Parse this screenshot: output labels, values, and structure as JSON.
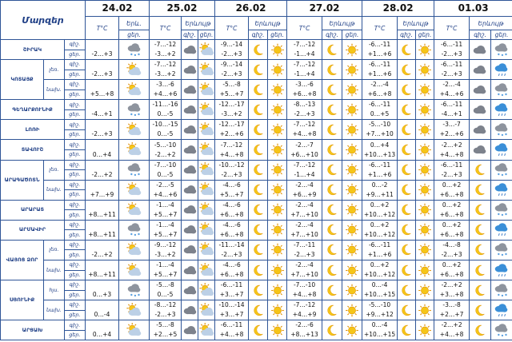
{
  "header": {
    "region": "Մարզեր",
    "dates": [
      "24.02",
      "25.02",
      "26.02",
      "27.02",
      "28.02",
      "01.03"
    ],
    "temp": "T°C",
    "phen": "Երևույթ",
    "phen_short": "Երև.",
    "night": "գիշ.",
    "day": "ցեր."
  },
  "regions": [
    {
      "name": "ՇԻՐԱԿ",
      "rows": [
        {
          "first": "-2…+3",
          "days": [
            [
              "-7…-12",
              "-3…+2"
            ],
            [
              "-9…-14",
              "-2…+3"
            ],
            [
              "-7…-12",
              "-1…+4"
            ],
            [
              "-6…-11",
              "+1…+6"
            ],
            [
              "-6…-11",
              "-2…+3"
            ]
          ]
        }
      ]
    },
    {
      "name": "ԿՈՏԱՅՔ",
      "rows": [
        {
          "sub": "լեռ.",
          "first": "-2…+3",
          "days": [
            [
              "-7…-12",
              "-3…+2"
            ],
            [
              "-9…-14",
              "-2…+3"
            ],
            [
              "-7…-12",
              "-1…+4"
            ],
            [
              "-6…-11",
              "+1…+6"
            ],
            [
              "-6…-11",
              "-2…+3"
            ]
          ]
        },
        {
          "sub": "նախ.",
          "first": "+5…+8",
          "days": [
            [
              "-3…-6",
              "+4…+6"
            ],
            [
              "-5…-8",
              "+5…+7"
            ],
            [
              "-3…-6",
              "+6…+8"
            ],
            [
              "-2…-4",
              "+6…+8"
            ],
            [
              "-2…-4",
              "+4…+6"
            ]
          ]
        }
      ]
    },
    {
      "name": "ԳԵՂԱՐՔՈՒՆԻՔ",
      "rows": [
        {
          "first": "-4…+1",
          "days": [
            [
              "-11…-16",
              "0…-5"
            ],
            [
              "-12…-17",
              "-3…+2"
            ],
            [
              "-8…-13",
              "-2…+3"
            ],
            [
              "-6…-11",
              "0…+5"
            ],
            [
              "-6…-11",
              "-4…+1"
            ]
          ]
        }
      ]
    },
    {
      "name": "ԼՈՌԻ",
      "rows": [
        {
          "first": "-2…+3",
          "days": [
            [
              "-10…-15",
              "0…-5"
            ],
            [
              "-12…-17",
              "+2…+6"
            ],
            [
              "-7…-12",
              "+4…+8"
            ],
            [
              "-5…-10",
              "+7…+10"
            ],
            [
              "-3…-7",
              "+2…+6"
            ]
          ]
        }
      ]
    },
    {
      "name": "ՏԱՎՈՒՇ",
      "rows": [
        {
          "first": "0…+4",
          "days": [
            [
              "-5…-10",
              "-2…+2"
            ],
            [
              "-7…-12",
              "+4…+8"
            ],
            [
              "-2…-7",
              "+6…+10"
            ],
            [
              "0…+4",
              "+10…+13"
            ],
            [
              "-2…+2",
              "+4…+8"
            ]
          ]
        }
      ]
    },
    {
      "name": "ԱՐԱԳԱԾՈՏՆ",
      "rows": [
        {
          "sub": "լեռ.",
          "first": "-2…+2",
          "days": [
            [
              "-7…-10",
              "0…-5"
            ],
            [
              "-10…-12",
              "-2…+3"
            ],
            [
              "-7…-12",
              "-1…+4"
            ],
            [
              "-6…-11",
              "+1…+6"
            ],
            [
              "-6…-11",
              "-2…+3"
            ]
          ]
        },
        {
          "sub": "նախ.",
          "first": "+7…+9",
          "days": [
            [
              "-2…-5",
              "+4…+6"
            ],
            [
              "-4…-6",
              "+5…+7"
            ],
            [
              "-2…-4",
              "+6…+9"
            ],
            [
              "0…-2",
              "+9…+11"
            ],
            [
              "0…+2",
              "+6…+8"
            ]
          ]
        }
      ]
    },
    {
      "name": "ԱՐԱՐԱՏ",
      "rows": [
        {
          "first": "+8…+11",
          "days": [
            [
              "-1…-4",
              "+5…+7"
            ],
            [
              "-4…-6",
              "+6…+8"
            ],
            [
              "-2…-4",
              "+7…+10"
            ],
            [
              "0…+2",
              "+10…+12"
            ],
            [
              "0…+2",
              "+6…+8"
            ]
          ]
        }
      ]
    },
    {
      "name": "ԱՐՄԱՎԻՐ",
      "rows": [
        {
          "first": "+8…+11",
          "days": [
            [
              "-1…-4",
              "+5…+7"
            ],
            [
              "-4…-6",
              "+6…+8"
            ],
            [
              "-2…-4",
              "+7…+10"
            ],
            [
              "0…+2",
              "+10…+12"
            ],
            [
              "0…+2",
              "+6…+8"
            ]
          ]
        }
      ]
    },
    {
      "name": "ՎԱՅՈՑ ՁՈՐ",
      "rows": [
        {
          "sub": "լեռ.",
          "first": "-2…+2",
          "days": [
            [
              "-9…-12",
              "-3…+2"
            ],
            [
              "-11…-14",
              "-2…+3"
            ],
            [
              "-7…-11",
              "-2…+3"
            ],
            [
              "-6…-11",
              "+1…+6"
            ],
            [
              "-4…-8",
              "-2…+3"
            ]
          ]
        },
        {
          "sub": "նախ.",
          "first": "+8…+11",
          "days": [
            [
              "-1…-4",
              "+5…+7"
            ],
            [
              "-4…-6",
              "+6…+8"
            ],
            [
              "-2…-4",
              "+7…+10"
            ],
            [
              "0…+2",
              "+10…+12"
            ],
            [
              "0…+2",
              "+6…+8"
            ]
          ]
        }
      ]
    },
    {
      "name": "ՍՅՈՒՆԻՔ",
      "rows": [
        {
          "sub": "հյս.",
          "first": "0…+3",
          "days": [
            [
              "-5…-8",
              "0…-5"
            ],
            [
              "-6…-11",
              "+3…+7"
            ],
            [
              "-7…-10",
              "+4…+8"
            ],
            [
              "0…-4",
              "+10…+15"
            ],
            [
              "-2…+2",
              "+3…+8"
            ]
          ]
        },
        {
          "sub": "նախ.",
          "first": "0…-4",
          "days": [
            [
              "-8…-12",
              "-2…+3"
            ],
            [
              "-10…-14",
              "+3…+7"
            ],
            [
              "-7…-12",
              "+4…+9"
            ],
            [
              "-5…-10",
              "+9…+12"
            ],
            [
              "-3…-8",
              "+2…+7"
            ]
          ]
        }
      ]
    },
    {
      "name": "ԱՐՑԱԽ",
      "rows": [
        {
          "first": "0…+4",
          "days": [
            [
              "-5…-8",
              "+2…+5"
            ],
            [
              "-6…-11",
              "+4…+8"
            ],
            [
              "-2…-6",
              "+8…+13"
            ],
            [
              "0…-4",
              "+10…+15"
            ],
            [
              "-2…+2",
              "+4…+8"
            ]
          ]
        }
      ]
    }
  ]
}
